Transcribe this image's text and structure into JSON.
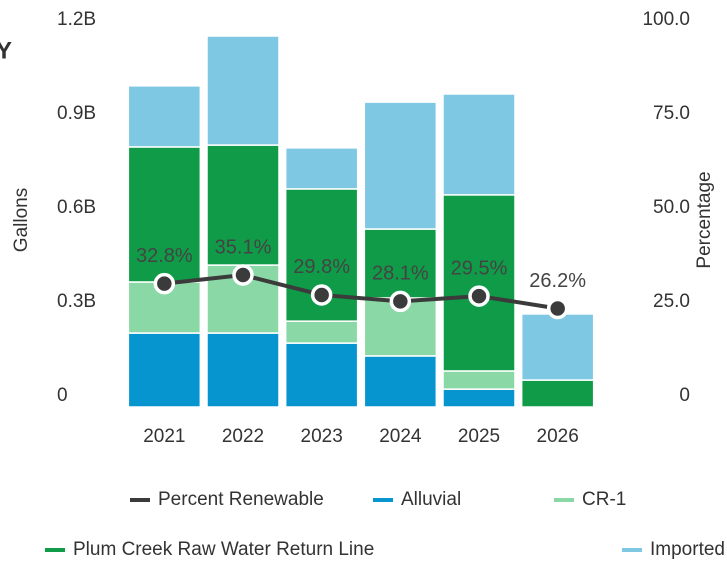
{
  "chart_data": {
    "type": "bar",
    "title": "Y",
    "categories": [
      "2021",
      "2022",
      "2023",
      "2024",
      "2025",
      "2026"
    ],
    "series": [
      {
        "name": "Percent Renewable",
        "color": "#3b3b3b",
        "type": "line",
        "axis": "y2",
        "values": [
          32.8,
          35.1,
          29.8,
          28.1,
          29.5,
          26.2
        ],
        "value_labels": [
          "32.8%",
          "35.1%",
          "29.8%",
          "28.1%",
          "29.5%",
          "26.2%"
        ]
      },
      {
        "name": "Alluvial",
        "color": "#0795d0",
        "values": [
          236000000,
          236000000,
          204000000,
          163000000,
          57000000,
          0
        ]
      },
      {
        "name": "CR-1",
        "color": "#8ad8a6",
        "values": [
          163000000,
          217000000,
          70000000,
          185000000,
          58000000,
          0
        ]
      },
      {
        "name": "Plum Creek Raw Water Return Line",
        "color": "#0f9b47",
        "values": [
          431000000,
          383000000,
          422000000,
          220000000,
          562000000,
          86000000
        ]
      },
      {
        "name": "Imported",
        "color": "#7ec8e3",
        "values": [
          195000000,
          348000000,
          131000000,
          405000000,
          322000000,
          211000000
        ]
      }
    ],
    "y_label": "Gallons",
    "y2_label": "Percentage",
    "ylim": [
      0,
      1200000000
    ],
    "yticks": [
      0,
      {
        "value": 300000000,
        "label": "0.3B"
      },
      {
        "value": 600000000,
        "label": "0.6B"
      },
      {
        "value": 900000000,
        "label": "0.9B"
      },
      {
        "value": 1200000000,
        "label": "1.2B"
      }
    ],
    "y2lim": [
      0,
      100
    ],
    "y2ticks": [
      0,
      {
        "value": 25,
        "label": "25.0"
      },
      {
        "value": 50,
        "label": "50.0"
      },
      {
        "value": 75,
        "label": "75.0"
      },
      {
        "value": 100,
        "label": "100.0"
      }
    ],
    "stacked": true,
    "grid": false
  }
}
